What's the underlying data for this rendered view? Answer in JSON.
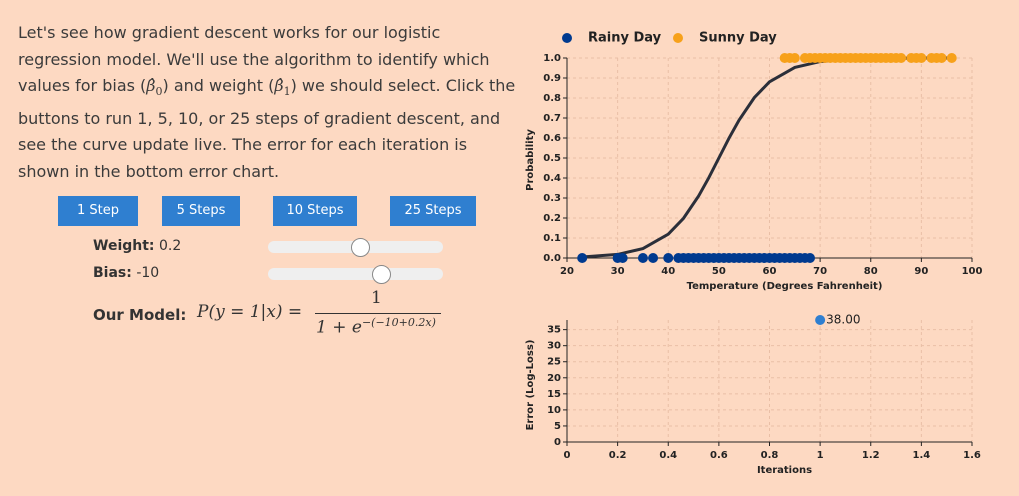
{
  "intro": [
    "Let's see how gradient descent works for our logistic regression model. We'll use the algorithm to identify which values for bias (",
    {
      "symbol": "β̂",
      "sub": "0"
    },
    ") and weight (",
    {
      "symbol": "β̂",
      "sub": "1"
    },
    ") we should select. Click the buttons to run 1, 5, 10, or 25 steps of gradient descent, and see the curve update live. The error for each iteration is shown in the bottom error chart."
  ],
  "controls": {
    "buttons": [
      "1 Step",
      "5 Steps",
      "10 Steps",
      "25 Steps"
    ],
    "weight": {
      "label": "Weight:",
      "value": 0.2
    },
    "bias": {
      "label": "Bias:",
      "value": -10
    }
  },
  "model": {
    "label": "Our Model:",
    "lhs": "P(y = 1|x) =",
    "numerator": "1",
    "denominator": "1 + e",
    "exponent": "−(−10+0.2x)"
  },
  "chart_data": [
    {
      "type": "scatter",
      "x_label": "Temperature (Degrees Fahrenheit)",
      "y_label": "Probability",
      "legend": "top",
      "grid": true,
      "xlim": [
        20,
        100
      ],
      "xticks": [
        20,
        30,
        40,
        50,
        60,
        70,
        80,
        90,
        100
      ],
      "ylim": [
        0,
        1
      ],
      "yticks": [
        {
          "value": 0,
          "label": "0.0"
        },
        0.1,
        0.2,
        0.3,
        0.4,
        0.5,
        0.6,
        0.7,
        0.8,
        0.9,
        {
          "value": 1,
          "label": "1.0"
        }
      ],
      "series": [
        {
          "name": "Rainy Day",
          "color": "#003a8f",
          "x": [
            23,
            30,
            31,
            35,
            37,
            40,
            42,
            43,
            44,
            45,
            46,
            47,
            48,
            49,
            50,
            51,
            52,
            53,
            54,
            55,
            56,
            57,
            58,
            59,
            60,
            61,
            62,
            63,
            64,
            65,
            66,
            67,
            68
          ],
          "values": [
            0,
            0,
            0,
            0,
            0,
            0,
            0,
            0,
            0,
            0,
            0,
            0,
            0,
            0,
            0,
            0,
            0,
            0,
            0,
            0,
            0,
            0,
            0,
            0,
            0,
            0,
            0,
            0,
            0,
            0,
            0,
            0,
            0
          ]
        },
        {
          "name": "Sunny Day",
          "color": "#f7a11a",
          "x": [
            63,
            64,
            65,
            67,
            68,
            69,
            70,
            71,
            72,
            73,
            74,
            75,
            76,
            77,
            78,
            79,
            80,
            81,
            82,
            83,
            84,
            85,
            86,
            88,
            89,
            90,
            92,
            93,
            94,
            96
          ],
          "values": [
            1,
            1,
            1,
            1,
            1,
            1,
            1,
            1,
            1,
            1,
            1,
            1,
            1,
            1,
            1,
            1,
            1,
            1,
            1,
            1,
            1,
            1,
            1,
            1,
            1,
            1,
            1,
            1,
            1,
            1
          ]
        }
      ],
      "curve": {
        "color": "#2b2f3a",
        "x": [
          23,
          30,
          35,
          40,
          43,
          46,
          48,
          50,
          52,
          54,
          57,
          60,
          65,
          70,
          75,
          80,
          85,
          90,
          96
        ],
        "values": [
          0.005,
          0.018,
          0.047,
          0.119,
          0.198,
          0.31,
          0.401,
          0.5,
          0.599,
          0.69,
          0.802,
          0.881,
          0.953,
          0.982,
          0.993,
          0.998,
          0.999,
          1,
          1
        ]
      }
    },
    {
      "type": "scatter",
      "x_label": "Iterations",
      "y_label": "Error (Log-Loss)",
      "grid": true,
      "xlim": [
        0,
        1.6
      ],
      "xticks": [
        0,
        0.2,
        0.4,
        0.6,
        0.8,
        1,
        1.2,
        1.4,
        1.6
      ],
      "ylim": [
        0,
        38
      ],
      "yticks": [
        0,
        5,
        10,
        15,
        20,
        25,
        30,
        35
      ],
      "series": [
        {
          "color": "#2f7fd0",
          "x": [
            1
          ],
          "values": [
            38
          ],
          "value_labels": [
            "38.00"
          ]
        }
      ]
    }
  ]
}
